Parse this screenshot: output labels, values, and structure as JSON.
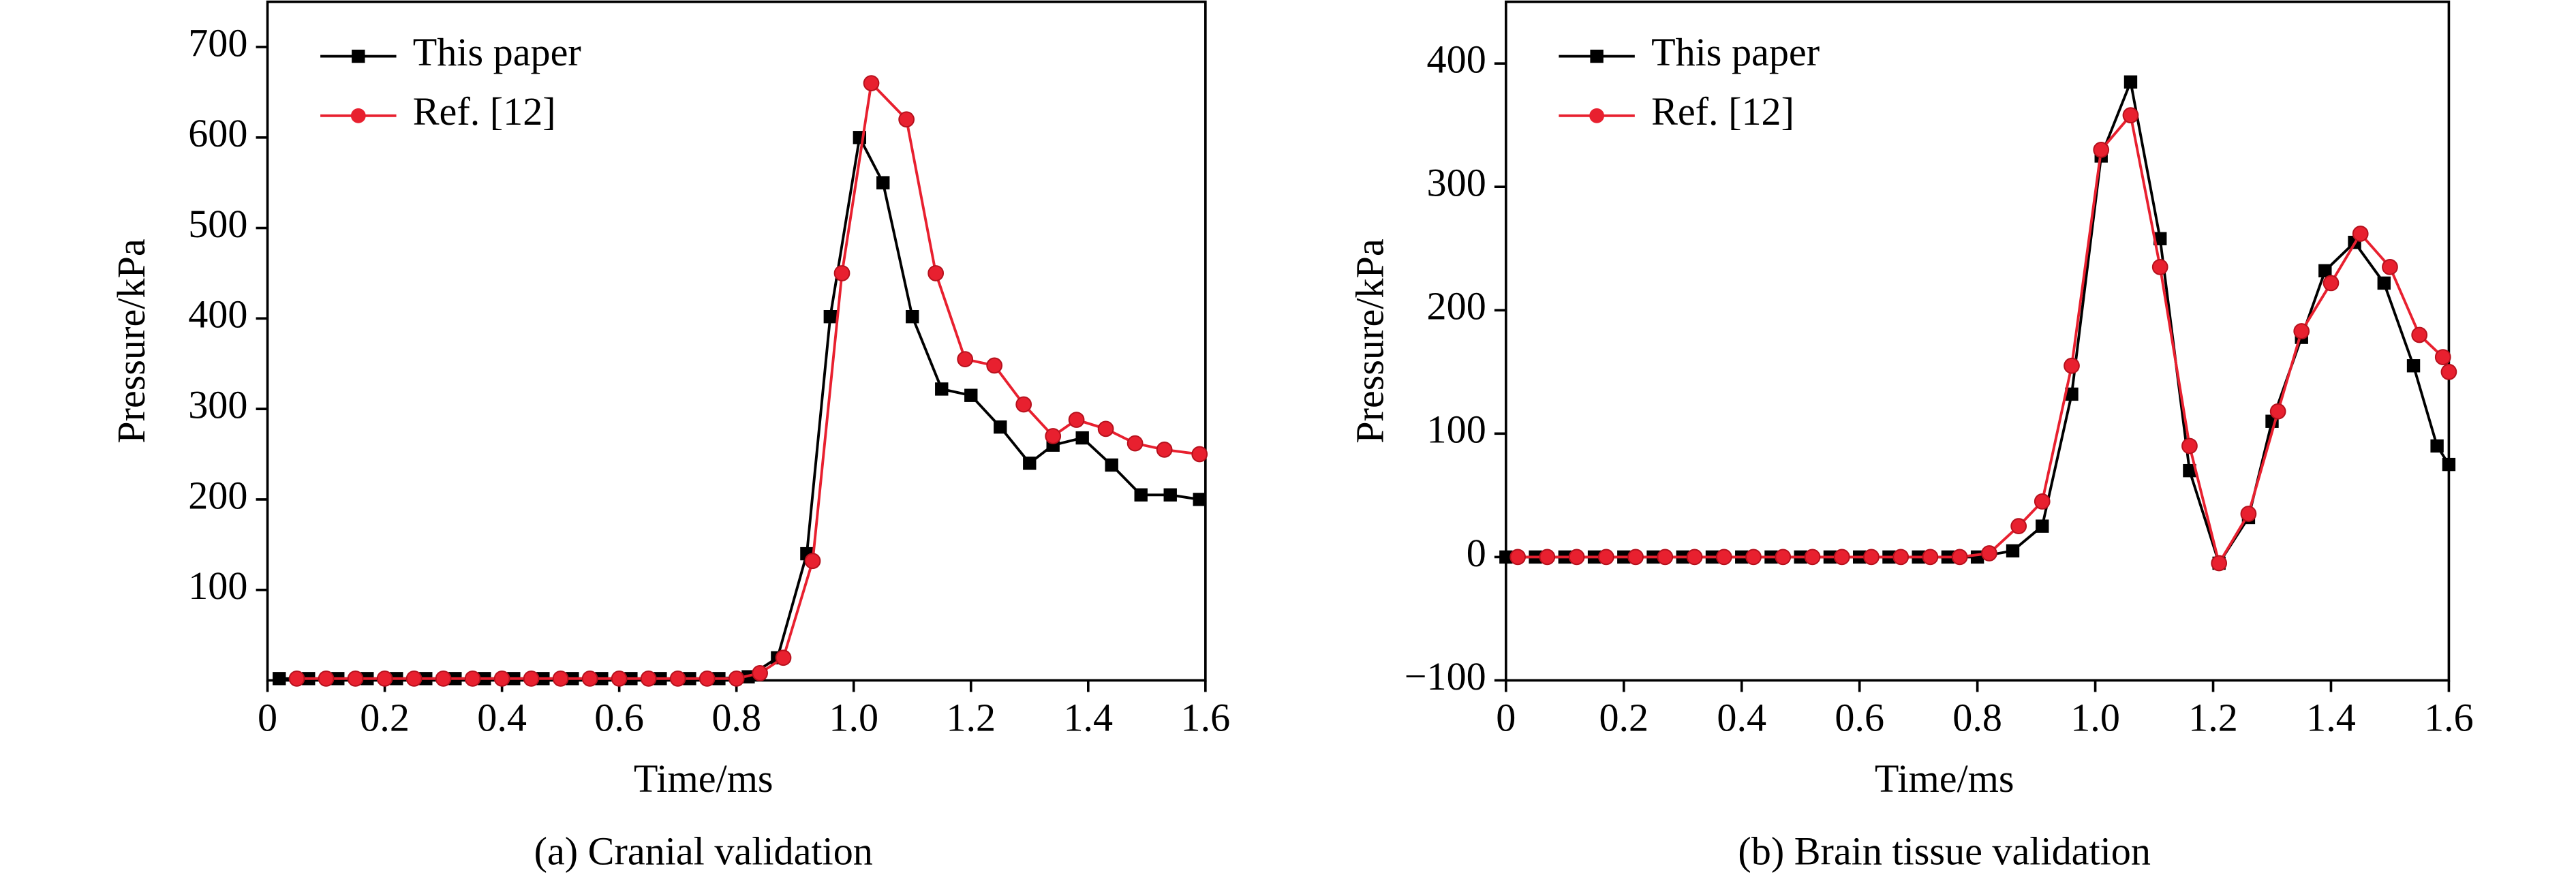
{
  "chart_data": [
    {
      "type": "line",
      "caption": "(a) Cranial validation",
      "xlabel": "Time/ms",
      "ylabel": "Pressure/kPa",
      "xlim": [
        0,
        1.6
      ],
      "xticks": [
        0,
        0.2,
        0.4,
        0.6,
        0.8,
        {
          "value": 1,
          "label": "1.0"
        },
        1.2,
        1.4,
        1.6
      ],
      "ylim": [
        0,
        750
      ],
      "yticks": [
        100,
        200,
        300,
        400,
        500,
        600,
        700
      ],
      "legend": "upper-left",
      "series": [
        {
          "name": "This paper",
          "color": "#000000",
          "marker": "square",
          "x": [
            0.02,
            0.07,
            0.12,
            0.17,
            0.22,
            0.27,
            0.32,
            0.37,
            0.42,
            0.47,
            0.52,
            0.57,
            0.62,
            0.67,
            0.72,
            0.77,
            0.82,
            0.87,
            0.92,
            0.96,
            1.01,
            1.05,
            1.1,
            1.15,
            1.2,
            1.25,
            1.3,
            1.34,
            1.39,
            1.44,
            1.49,
            1.54,
            1.59
          ],
          "values": [
            2,
            2,
            2,
            2,
            2,
            2,
            2,
            2,
            2,
            2,
            2,
            2,
            2,
            2,
            2,
            2,
            4,
            25,
            140,
            402,
            600,
            550,
            402,
            322,
            315,
            280,
            240,
            260,
            268,
            238,
            205,
            205,
            200
          ]
        },
        {
          "name": "Ref. [12]",
          "color": "#e8202f",
          "marker": "circle",
          "x": [
            0.05,
            0.1,
            0.15,
            0.2,
            0.25,
            0.3,
            0.35,
            0.4,
            0.45,
            0.5,
            0.55,
            0.6,
            0.65,
            0.7,
            0.75,
            0.8,
            0.84,
            0.88,
            0.93,
            0.98,
            1.03,
            1.09,
            1.14,
            1.19,
            1.24,
            1.29,
            1.34,
            1.38,
            1.43,
            1.48,
            1.53,
            1.59
          ],
          "values": [
            2,
            2,
            2,
            2,
            2,
            2,
            2,
            2,
            2,
            2,
            2,
            2,
            2,
            2,
            2,
            2,
            8,
            25,
            132,
            450,
            660,
            620,
            450,
            355,
            348,
            305,
            270,
            288,
            278,
            262,
            255,
            250
          ]
        }
      ]
    },
    {
      "type": "line",
      "caption": "(b) Brain tissue validation",
      "xlabel": "Time/ms",
      "ylabel": "Pressure/kPa",
      "xlim": [
        0,
        1.6
      ],
      "xticks": [
        0,
        0.2,
        0.4,
        0.6,
        0.8,
        {
          "value": 1,
          "label": "1.0"
        },
        1.2,
        1.4,
        1.6
      ],
      "ylim": [
        -100,
        450
      ],
      "yticks": [
        {
          "value": -100,
          "label": "−100"
        },
        0,
        100,
        200,
        300,
        400
      ],
      "legend": "upper-left",
      "series": [
        {
          "name": "This paper",
          "color": "#000000",
          "marker": "square",
          "x": [
            0,
            0.05,
            0.1,
            0.15,
            0.2,
            0.25,
            0.3,
            0.35,
            0.4,
            0.45,
            0.5,
            0.55,
            0.6,
            0.65,
            0.7,
            0.75,
            0.8,
            0.86,
            0.91,
            0.96,
            1.01,
            1.06,
            1.11,
            1.16,
            1.21,
            1.26,
            1.3,
            1.35,
            1.39,
            1.44,
            1.49,
            1.54,
            1.58,
            1.6
          ],
          "values": [
            0,
            0,
            0,
            0,
            0,
            0,
            0,
            0,
            0,
            0,
            0,
            0,
            0,
            0,
            0,
            0,
            0,
            5,
            25,
            132,
            325,
            385,
            258,
            70,
            -5,
            32,
            110,
            178,
            232,
            255,
            222,
            155,
            90,
            75
          ]
        },
        {
          "name": "Ref. [12]",
          "color": "#e8202f",
          "marker": "circle",
          "x": [
            0.02,
            0.07,
            0.12,
            0.17,
            0.22,
            0.27,
            0.32,
            0.37,
            0.42,
            0.47,
            0.52,
            0.57,
            0.62,
            0.67,
            0.72,
            0.77,
            0.82,
            0.87,
            0.91,
            0.96,
            1.01,
            1.06,
            1.11,
            1.16,
            1.21,
            1.26,
            1.31,
            1.35,
            1.4,
            1.45,
            1.5,
            1.55,
            1.59,
            1.6
          ],
          "values": [
            0,
            0,
            0,
            0,
            0,
            0,
            0,
            0,
            0,
            0,
            0,
            0,
            0,
            0,
            0,
            0,
            3,
            25,
            45,
            155,
            330,
            358,
            235,
            90,
            -5,
            35,
            118,
            183,
            222,
            262,
            235,
            180,
            162,
            150
          ]
        }
      ]
    }
  ]
}
